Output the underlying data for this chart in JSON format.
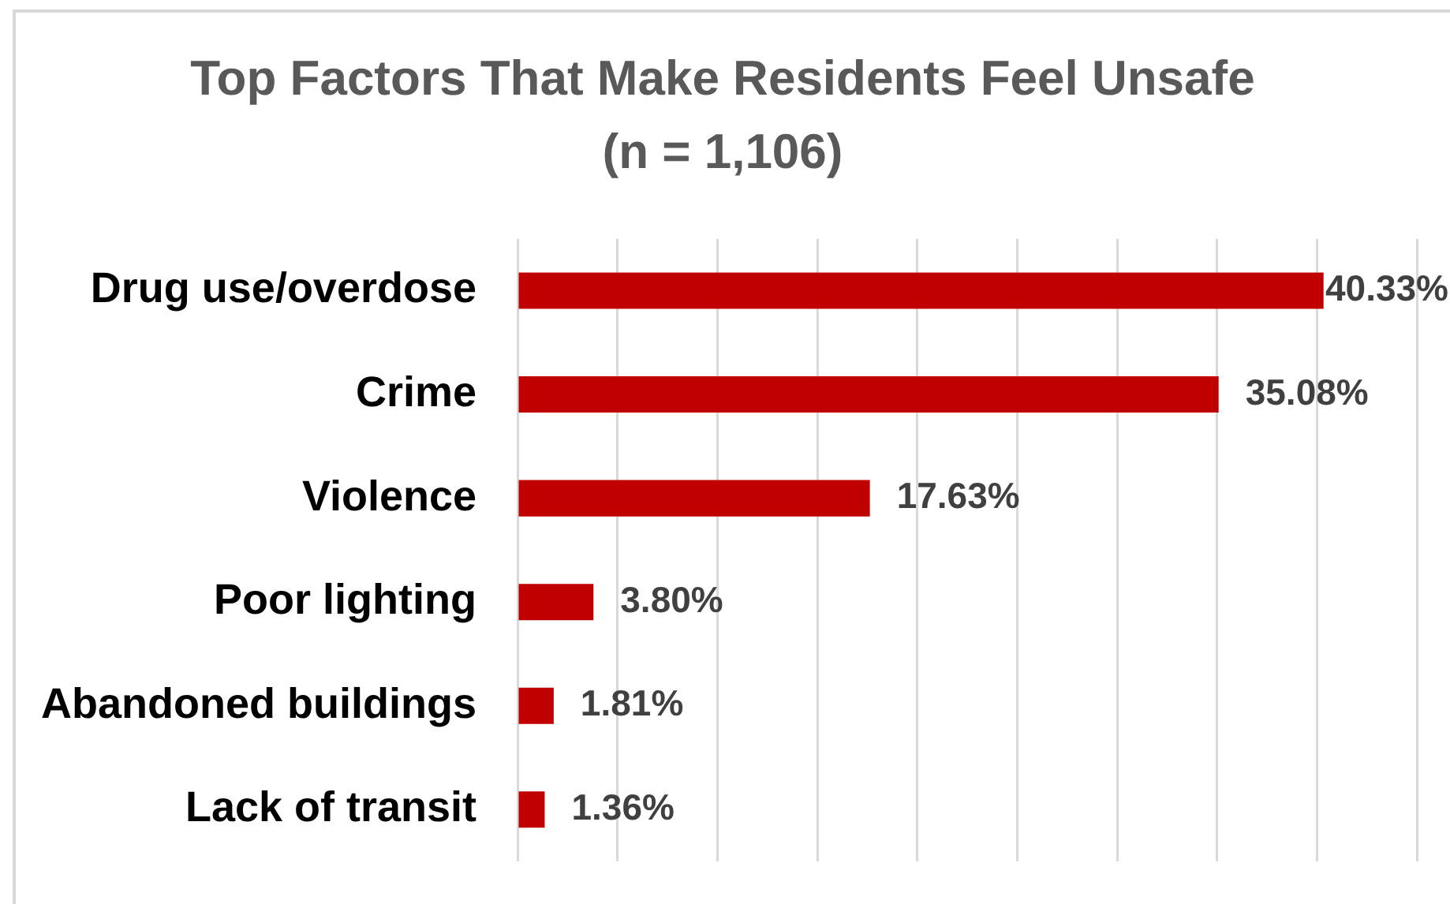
{
  "chart_data": {
    "type": "bar",
    "orientation": "horizontal",
    "title": "Top Factors That Make Residents Feel Unsafe",
    "subtitle": "(n = 1,106)",
    "categories": [
      "Drug use/overdose",
      "Crime",
      "Violence",
      "Poor lighting",
      "Abandoned buildings",
      "Lack of transit"
    ],
    "values": [
      40.33,
      35.08,
      17.63,
      3.8,
      1.81,
      1.36
    ],
    "color": "#c00000",
    "value_labels": [
      "40.33%",
      "35.08%",
      "17.63%",
      "3.80%",
      "1.81%",
      "1.36%"
    ],
    "xlim": [
      0,
      45
    ],
    "xticks": [
      {
        "value": 0,
        "label": null
      },
      {
        "value": 5,
        "label": null
      },
      {
        "value": 10,
        "label": null
      },
      {
        "value": 15,
        "label": null
      },
      {
        "value": 20,
        "label": null
      },
      {
        "value": 25,
        "label": null
      },
      {
        "value": 30,
        "label": null
      },
      {
        "value": 35,
        "label": null
      },
      {
        "value": 40,
        "label": null
      },
      {
        "value": 45,
        "label": null
      }
    ],
    "grid": "x",
    "tick_labels": "y"
  }
}
